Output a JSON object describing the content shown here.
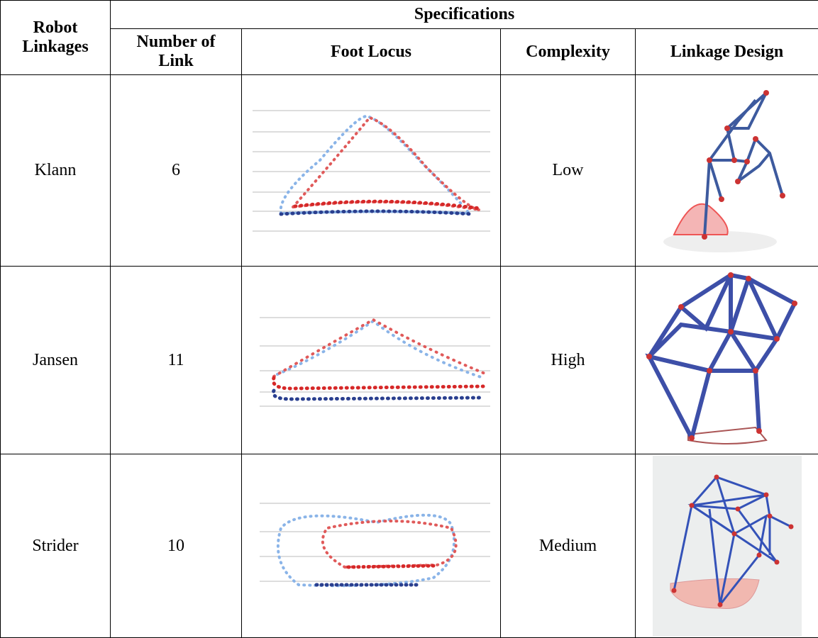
{
  "header": {
    "first_column": "Robot Linkages",
    "group": "Specifications",
    "columns": [
      "Number of Link",
      "Foot Locus",
      "Complexity",
      "Linkage Design"
    ]
  },
  "table": {
    "rows": [
      [
        "Klann",
        6,
        "Low"
      ],
      [
        "Jansen",
        11,
        "High"
      ],
      [
        "Strider",
        10,
        "Medium"
      ]
    ]
  }
}
